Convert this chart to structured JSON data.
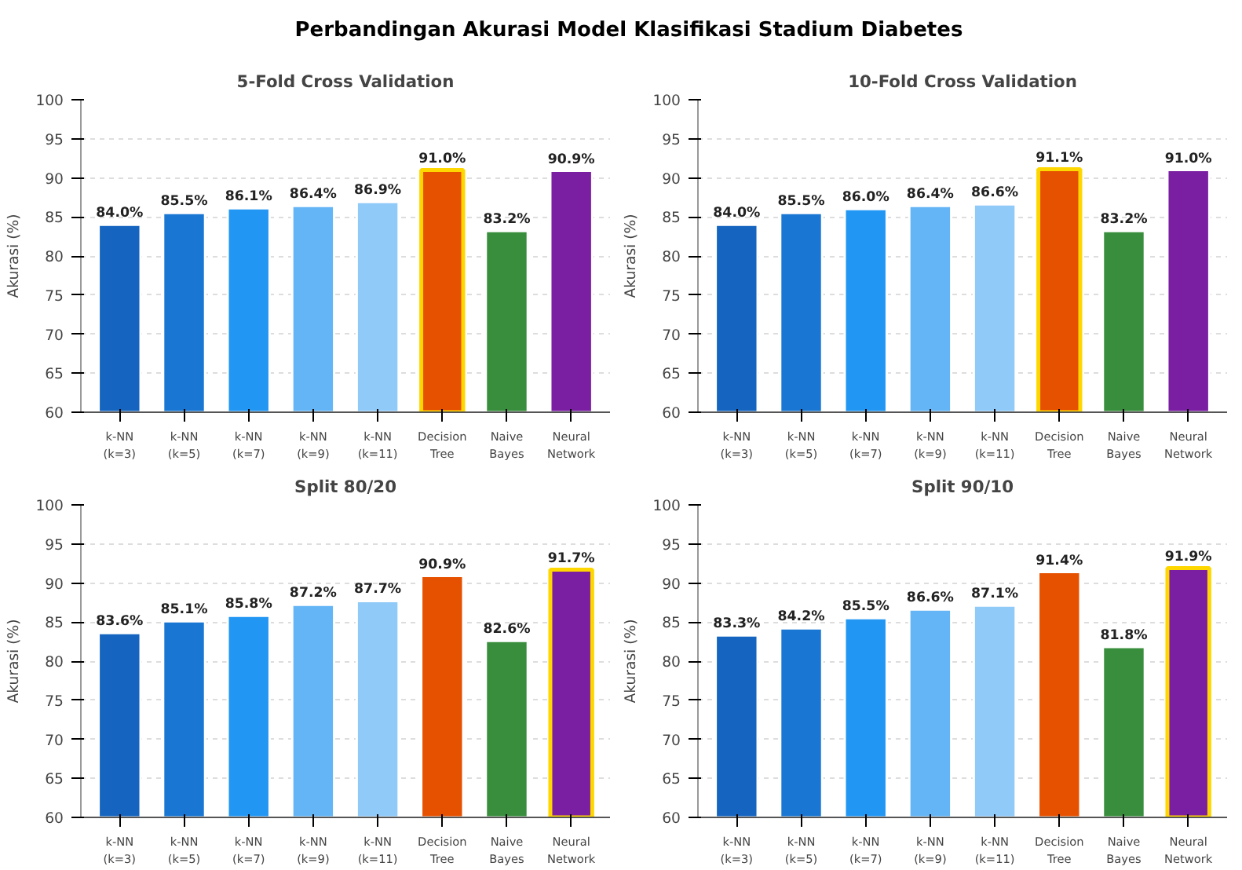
{
  "chart_data": [
    {
      "type": "bar",
      "title": "5-Fold Cross Validation",
      "ylabel": "Akurasi (%)",
      "annotations": [
        "Perbandingan Akurasi Model Klasifikasi Stadium Diabetes"
      ],
      "categories": [
        "k-NN (k=3)",
        "k-NN (k=5)",
        "k-NN (k=7)",
        "k-NN (k=9)",
        "k-NN (k=11)",
        "Decision Tree",
        "Naive Bayes",
        "Neural Network"
      ],
      "values": [
        84.0,
        85.5,
        86.1,
        86.4,
        86.9,
        91.0,
        83.2,
        90.9
      ],
      "value_labels": [
        "84.0%",
        "85.5%",
        "86.1%",
        "86.4%",
        "86.9%",
        "91.0%",
        "83.2%",
        "90.9%"
      ],
      "colors": [
        "#1565c0",
        "#1976d2",
        "#2196f3",
        "#64b5f6",
        "#90caf9",
        "#e65100",
        "#388e3c",
        "#7b1fa2"
      ],
      "ylim": [
        60,
        100
      ],
      "yticks": [
        60,
        65,
        70,
        75,
        80,
        85,
        90,
        95,
        100
      ],
      "grid": "y"
    },
    {
      "type": "bar",
      "title": "10-Fold Cross Validation",
      "ylabel": "Akurasi (%)",
      "categories": [
        "k-NN (k=3)",
        "k-NN (k=5)",
        "k-NN (k=7)",
        "k-NN (k=9)",
        "k-NN (k=11)",
        "Decision Tree",
        "Naive Bayes",
        "Neural Network"
      ],
      "values": [
        84.0,
        85.5,
        86.0,
        86.4,
        86.6,
        91.1,
        83.2,
        91.0
      ],
      "value_labels": [
        "84.0%",
        "85.5%",
        "86.0%",
        "86.4%",
        "86.6%",
        "91.1%",
        "83.2%",
        "91.0%"
      ],
      "colors": [
        "#1565c0",
        "#1976d2",
        "#2196f3",
        "#64b5f6",
        "#90caf9",
        "#e65100",
        "#388e3c",
        "#7b1fa2"
      ],
      "ylim": [
        60,
        100
      ],
      "yticks": [
        60,
        65,
        70,
        75,
        80,
        85,
        90,
        95,
        100
      ],
      "grid": "y"
    },
    {
      "type": "bar",
      "title": "Split 80/20",
      "ylabel": "Akurasi (%)",
      "categories": [
        "k-NN (k=3)",
        "k-NN (k=5)",
        "k-NN (k=7)",
        "k-NN (k=9)",
        "k-NN (k=11)",
        "Decision Tree",
        "Naive Bayes",
        "Neural Network"
      ],
      "values": [
        83.6,
        85.1,
        85.8,
        87.2,
        87.7,
        90.9,
        82.6,
        91.7
      ],
      "value_labels": [
        "83.6%",
        "85.1%",
        "85.8%",
        "87.2%",
        "87.7%",
        "90.9%",
        "82.6%",
        "91.7%"
      ],
      "colors": [
        "#1565c0",
        "#1976d2",
        "#2196f3",
        "#64b5f6",
        "#90caf9",
        "#e65100",
        "#388e3c",
        "#7b1fa2"
      ],
      "ylim": [
        60,
        100
      ],
      "yticks": [
        60,
        65,
        70,
        75,
        80,
        85,
        90,
        95,
        100
      ],
      "grid": "y"
    },
    {
      "type": "bar",
      "title": "Split 90/10",
      "ylabel": "Akurasi (%)",
      "categories": [
        "k-NN (k=3)",
        "k-NN (k=5)",
        "k-NN (k=7)",
        "k-NN (k=9)",
        "k-NN (k=11)",
        "Decision Tree",
        "Naive Bayes",
        "Neural Network"
      ],
      "values": [
        83.3,
        84.2,
        85.5,
        86.6,
        87.1,
        91.4,
        81.8,
        91.9
      ],
      "value_labels": [
        "83.3%",
        "84.2%",
        "85.5%",
        "86.6%",
        "87.1%",
        "91.4%",
        "81.8%",
        "91.9%"
      ],
      "colors": [
        "#1565c0",
        "#1976d2",
        "#2196f3",
        "#64b5f6",
        "#90caf9",
        "#e65100",
        "#388e3c",
        "#7b1fa2"
      ],
      "ylim": [
        60,
        100
      ],
      "yticks": [
        60,
        65,
        70,
        75,
        80,
        85,
        90,
        95,
        100
      ],
      "grid": "y"
    }
  ]
}
